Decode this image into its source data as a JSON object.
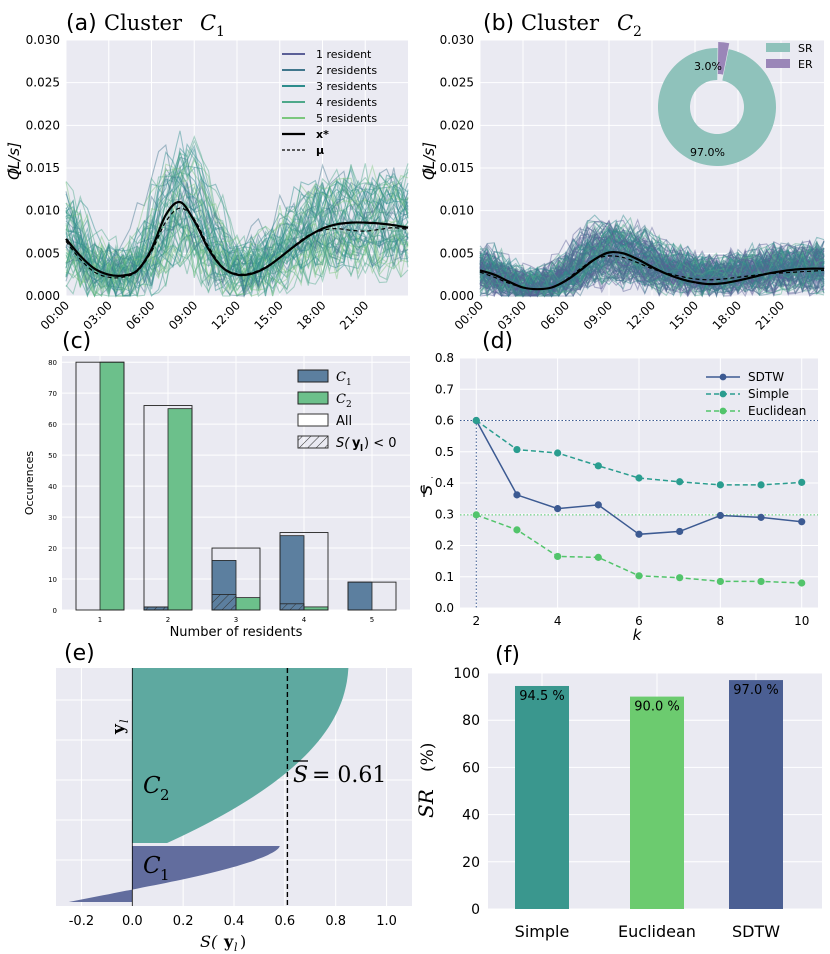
{
  "colors": {
    "bg": "#eaeaf2",
    "c1": "#5c7f9f",
    "c2": "#6cc08b",
    "r1": "#5b5f97",
    "r2": "#40768c",
    "r3": "#2d8c8c",
    "r4": "#4ea88a",
    "r5": "#7cc77e",
    "sr": "#8fc2bb",
    "er": "#9a86b8",
    "sdtw": "#3c5a92",
    "simple": "#2a9d8f",
    "euclid": "#52c46b",
    "sil_c2": "#5ea9a0",
    "sil_c1": "#626d9e",
    "bar_simple": "#3a978e",
    "bar_euclid": "#6ccb6f",
    "bar_sdtw": "#4b5f93"
  },
  "chart_data": [
    {
      "id": "a",
      "type": "line",
      "panel": "(a)",
      "title": "Cluster",
      "title_sym": "C",
      "title_sub": "1",
      "ylabel": "Q",
      "yunit": "[L/s]",
      "ylim": [
        0,
        0.03
      ],
      "yticks": [
        "0.000",
        "0.005",
        "0.010",
        "0.015",
        "0.020",
        "0.025",
        "0.030"
      ],
      "xticks": [
        "00:00",
        "03:00",
        "06:00",
        "09:00",
        "12:00",
        "15:00",
        "18:00",
        "21:00"
      ],
      "legend": {
        "items": [
          {
            "label": "1 resident",
            "color": "#5b5f97"
          },
          {
            "label": "2 residents",
            "color": "#40768c"
          },
          {
            "label": "3 residents",
            "color": "#2d8c8c"
          },
          {
            "label": "4 residents",
            "color": "#4ea88a"
          },
          {
            "label": "5 residents",
            "color": "#7cc77e"
          },
          {
            "label": "x*",
            "color": "#000000"
          },
          {
            "label": "μ",
            "color": "#000000"
          }
        ]
      },
      "x": [
        0,
        1,
        2,
        3,
        4,
        5,
        6,
        7,
        8,
        9,
        10,
        11,
        12,
        13,
        14,
        15,
        16,
        17,
        18,
        19,
        20,
        21,
        22,
        23,
        24
      ],
      "series": [
        {
          "name": "x*",
          "values": [
            0.0067,
            0.0047,
            0.0032,
            0.0025,
            0.0024,
            0.003,
            0.0055,
            0.0095,
            0.011,
            0.0088,
            0.0055,
            0.0033,
            0.0025,
            0.0026,
            0.0033,
            0.0045,
            0.0058,
            0.007,
            0.0079,
            0.0084,
            0.0086,
            0.0086,
            0.0085,
            0.0083,
            0.008
          ]
        },
        {
          "name": "μ",
          "values": [
            0.0064,
            0.0043,
            0.0028,
            0.0022,
            0.0022,
            0.0029,
            0.0052,
            0.0087,
            0.0103,
            0.009,
            0.0058,
            0.0034,
            0.0026,
            0.0027,
            0.0034,
            0.0045,
            0.0059,
            0.0071,
            0.0077,
            0.0079,
            0.0077,
            0.0076,
            0.0078,
            0.008,
            0.0078
          ]
        }
      ]
    },
    {
      "id": "b",
      "type": "line",
      "panel": "(b)",
      "title": "Cluster",
      "title_sym": "C",
      "title_sub": "2",
      "ylabel": "Q",
      "yunit": "[L/s]",
      "ylim": [
        0,
        0.03
      ],
      "yticks": [
        "0.000",
        "0.005",
        "0.010",
        "0.015",
        "0.020",
        "0.025",
        "0.030"
      ],
      "xticks": [
        "00:00",
        "03:00",
        "06:00",
        "09:00",
        "12:00",
        "15:00",
        "18:00",
        "21:00"
      ],
      "x": [
        0,
        1,
        2,
        3,
        4,
        5,
        6,
        7,
        8,
        9,
        10,
        11,
        12,
        13,
        14,
        15,
        16,
        17,
        18,
        19,
        20,
        21,
        22,
        23,
        24
      ],
      "series": [
        {
          "name": "x*",
          "values": [
            0.003,
            0.0025,
            0.0017,
            0.001,
            0.0008,
            0.001,
            0.0018,
            0.003,
            0.0043,
            0.0051,
            0.005,
            0.0043,
            0.0034,
            0.0026,
            0.002,
            0.0016,
            0.0014,
            0.0015,
            0.0018,
            0.0022,
            0.0026,
            0.0029,
            0.0031,
            0.0032,
            0.0032
          ]
        },
        {
          "name": "μ",
          "values": [
            0.0028,
            0.0022,
            0.0015,
            0.001,
            0.0008,
            0.001,
            0.0019,
            0.0032,
            0.0043,
            0.0047,
            0.0045,
            0.0039,
            0.0032,
            0.0027,
            0.0023,
            0.002,
            0.0019,
            0.002,
            0.0022,
            0.0024,
            0.0026,
            0.0027,
            0.0028,
            0.0029,
            0.003
          ]
        }
      ],
      "inset_pie": {
        "type": "pie",
        "legend": [
          "SR",
          "ER"
        ],
        "slices": [
          {
            "label": "SR",
            "value": 97.0,
            "text": "97.0%"
          },
          {
            "label": "ER",
            "value": 3.0,
            "text": "3.0%"
          }
        ]
      }
    },
    {
      "id": "c",
      "type": "bar",
      "panel": "(c)",
      "xlabel": "Number of residents",
      "ylabel": "Occurences",
      "ylim": [
        0,
        82
      ],
      "yticks": [
        0,
        10,
        20,
        30,
        40,
        50,
        60,
        70,
        80
      ],
      "categories": [
        "1",
        "2",
        "3",
        "4",
        "5"
      ],
      "series": [
        {
          "name": "C1",
          "label_sym": "C",
          "label_sub": "1",
          "values": [
            0,
            1,
            16,
            24,
            9
          ]
        },
        {
          "name": "C2",
          "label_sym": "C",
          "label_sub": "2",
          "values": [
            80,
            65,
            4,
            1,
            0
          ]
        },
        {
          "name": "All",
          "label": "All",
          "values": [
            80,
            66,
            20,
            25,
            9
          ]
        },
        {
          "name": "S(yl) < 0",
          "label_pre": "S(",
          "label_y": "y",
          "label_sub": "l",
          "label_post": ") < 0",
          "values_c1": [
            0,
            1,
            5,
            2,
            0
          ],
          "values_c2": [
            0,
            0,
            0,
            0,
            0
          ]
        }
      ]
    },
    {
      "id": "d",
      "type": "line",
      "panel": "(d)",
      "xlabel": "k",
      "ylabel": "S",
      "ylim": [
        0,
        0.8
      ],
      "yticks": [
        "0.0",
        "0.1",
        "0.2",
        "0.3",
        "0.4",
        "0.5",
        "0.6",
        "0.7",
        "0.8"
      ],
      "xticks": [
        "2",
        "4",
        "6",
        "8",
        "10"
      ],
      "x": [
        2,
        3,
        4,
        5,
        6,
        7,
        8,
        9,
        10
      ],
      "series": [
        {
          "name": "SDTW",
          "values": [
            0.6,
            0.362,
            0.318,
            0.33,
            0.236,
            0.245,
            0.296,
            0.29,
            0.276
          ]
        },
        {
          "name": "Simple",
          "values": [
            0.6,
            0.507,
            0.496,
            0.455,
            0.416,
            0.404,
            0.394,
            0.394,
            0.402
          ]
        },
        {
          "name": "Euclidean",
          "values": [
            0.298,
            0.25,
            0.165,
            0.162,
            0.103,
            0.097,
            0.085,
            0.085,
            0.08
          ]
        }
      ],
      "reference_lines": [
        0.6,
        0.298
      ]
    },
    {
      "id": "e",
      "type": "area",
      "panel": "(e)",
      "xlabel_pre": "S(",
      "xlabel_y": "y",
      "xlabel_sub": "l",
      "xlabel_post": ")",
      "ylabel_y": "y",
      "ylabel_sub": "l",
      "xlim": [
        -0.3,
        1.1
      ],
      "xticks": [
        "-0.2",
        "0.0",
        "0.2",
        "0.4",
        "0.6",
        "0.8",
        "1.0"
      ],
      "clusters": [
        {
          "name": "C2",
          "label_sym": "C",
          "label_sub": "2",
          "max": 0.85,
          "min": 0.0
        },
        {
          "name": "C1",
          "label_sym": "C",
          "label_sub": "1",
          "max": 0.58,
          "min": -0.25
        }
      ],
      "mean_text": "= 0.61",
      "mean_sym": "S",
      "mean": 0.61
    },
    {
      "id": "f",
      "type": "bar",
      "panel": "(f)",
      "ylabel_sym": "SR",
      "ylabel_unit": "(%)",
      "ylim": [
        0,
        100
      ],
      "yticks": [
        0,
        20,
        40,
        60,
        80,
        100
      ],
      "categories": [
        "Simple",
        "Euclidean",
        "SDTW"
      ],
      "values": [
        94.5,
        90.0,
        97.0
      ],
      "value_labels": [
        "94.5 %",
        "90.0 %",
        "97.0 %"
      ]
    }
  ]
}
